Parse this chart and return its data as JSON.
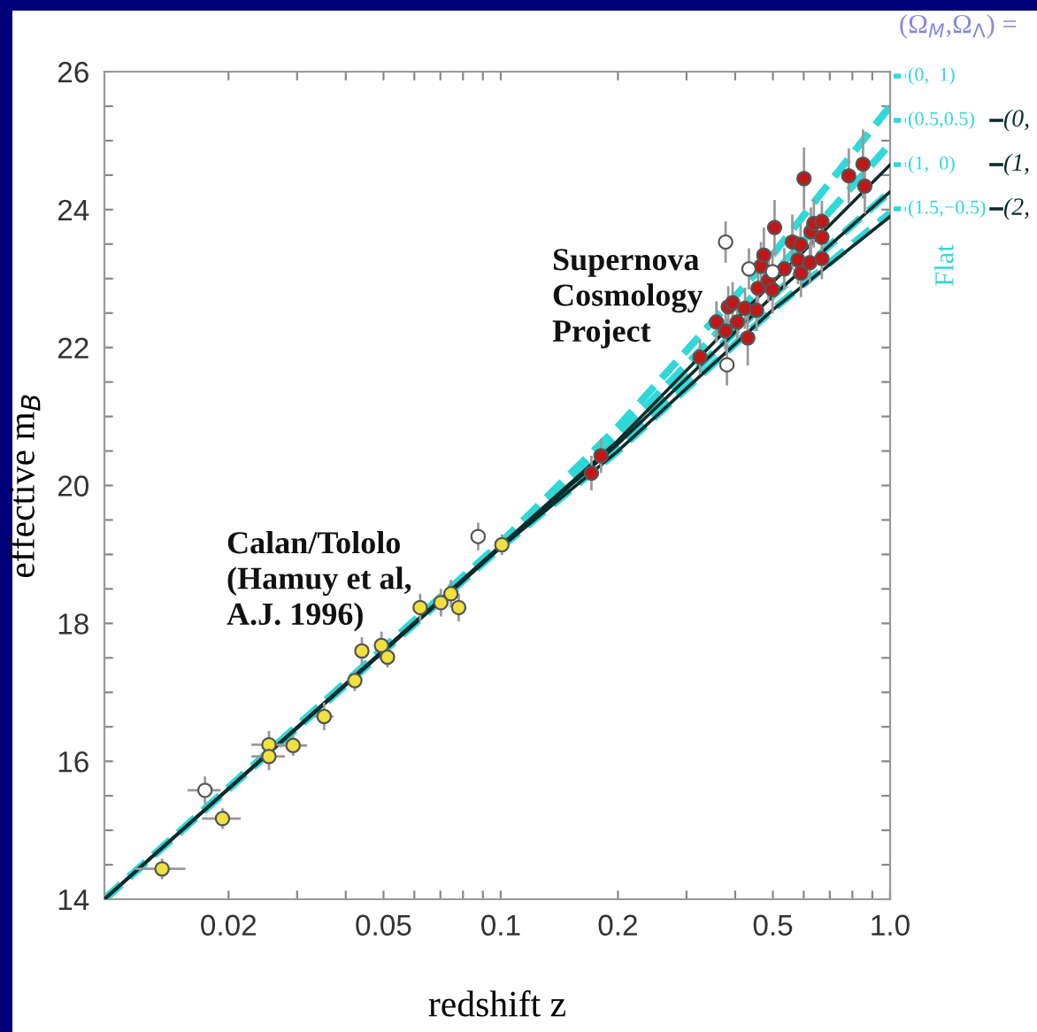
{
  "chart_data": {
    "type": "scatter",
    "xlabel": "redshift z",
    "ylabel": "effective m$_{B}$",
    "legend_title": "(Ω$_{M}$,Ω$_{Λ}$) =",
    "legend": "right",
    "grid": false,
    "log": "x",
    "xlim": [
      0.0096,
      1.0
    ],
    "ylim": [
      14,
      26
    ],
    "xticks": [
      0.02,
      {
        "value": 0.03,
        "label": null
      },
      {
        "value": 0.04,
        "label": null
      },
      0.05,
      {
        "value": 0.06,
        "label": null
      },
      {
        "value": 0.07,
        "label": null
      },
      {
        "value": 0.08,
        "label": null
      },
      {
        "value": 0.09,
        "label": null
      },
      0.1,
      0.2,
      {
        "value": 0.3,
        "label": null
      },
      {
        "value": 0.4,
        "label": null
      },
      0.5,
      {
        "value": 0.6,
        "label": null
      },
      {
        "value": 0.7,
        "label": null
      },
      {
        "value": 0.8,
        "label": null
      },
      {
        "value": 0.9,
        "label": null
      },
      {
        "value": 1.0,
        "label": "1.0"
      }
    ],
    "yticks": [
      14,
      {
        "value": 14.5,
        "label": null
      },
      {
        "value": 15,
        "label": null
      },
      {
        "value": 15.5,
        "label": null
      },
      16,
      {
        "value": 16.5,
        "label": null
      },
      {
        "value": 17,
        "label": null
      },
      {
        "value": 17.5,
        "label": null
      },
      18,
      {
        "value": 18.5,
        "label": null
      },
      {
        "value": 19,
        "label": null
      },
      {
        "value": 19.5,
        "label": null
      },
      20,
      {
        "value": 20.5,
        "label": null
      },
      {
        "value": 21,
        "label": null
      },
      {
        "value": 21.5,
        "label": null
      },
      22,
      {
        "value": 22.5,
        "label": null
      },
      {
        "value": 23,
        "label": null
      },
      {
        "value": 23.5,
        "label": null
      },
      24,
      {
        "value": 24.5,
        "label": null
      },
      {
        "value": 25,
        "label": null
      },
      {
        "value": 25.5,
        "label": null
      },
      26
    ],
    "annotations": [
      "Calan/Tololo\n(Hamuy et al,\nA.J. 1996)",
      "Supernova\nCosmology\nProject",
      "Flat"
    ],
    "series": [
      {
        "type": "line",
        "name": "(0,  1)",
        "color": "#30d8d8",
        "line_style": "dashed",
        "marker": "none",
        "x": [
          0.0096,
          0.1,
          0.2,
          0.5,
          1.0
        ],
        "values": [
          14.0,
          19.17,
          20.85,
          23.35,
          25.5
        ]
      },
      {
        "type": "line",
        "name": "(0.5,0.5)",
        "color": "#30d8d8",
        "line_style": "dashed",
        "marker": "none",
        "x": [
          0.0096,
          0.1,
          0.2,
          0.5,
          1.0
        ],
        "values": [
          14.0,
          19.15,
          20.72,
          23.05,
          24.95
        ]
      },
      {
        "type": "line",
        "name": "(1,  0)",
        "color": "#30d8d8",
        "line_style": "dashed",
        "marker": "none",
        "x": [
          0.0096,
          0.1,
          0.2,
          0.5,
          1.0
        ],
        "values": [
          14.0,
          19.12,
          20.6,
          22.75,
          24.26
        ]
      },
      {
        "type": "line",
        "name": "(1.5,−0.5)",
        "color": "#30d8d8",
        "line_style": "dashed",
        "marker": "none",
        "x": [
          0.0096,
          0.1,
          0.2,
          0.5,
          1.0
        ],
        "values": [
          14.0,
          19.1,
          20.5,
          22.55,
          23.95
        ]
      },
      {
        "type": "line",
        "name": "(0,",
        "color": "#0c2c2c",
        "line_style": "solid",
        "marker": "none",
        "x": [
          0.0096,
          0.1,
          0.2,
          0.5,
          1.0
        ],
        "values": [
          14.0,
          19.13,
          20.65,
          22.95,
          24.65
        ]
      },
      {
        "type": "line",
        "name": "(1,",
        "color": "#0c2c2c",
        "line_style": "solid",
        "marker": "none",
        "x": [
          0.0096,
          0.1,
          0.2,
          0.5,
          1.0
        ],
        "values": [
          14.0,
          19.12,
          20.6,
          22.75,
          24.26
        ]
      },
      {
        "type": "line",
        "name": "(2,",
        "color": "#0c2c2c",
        "line_style": "solid",
        "marker": "none",
        "x": [
          0.0096,
          0.1,
          0.2,
          0.5,
          1.0
        ],
        "values": [
          14.0,
          19.1,
          20.5,
          22.55,
          23.9
        ]
      },
      {
        "marker": "circle",
        "color": "#f0e040",
        "x": [
          0.0135,
          0.0193,
          0.0254,
          0.0254,
          0.0293,
          0.0352,
          0.0422,
          0.044,
          0.0494,
          0.0512,
          0.0621,
          0.0702,
          0.0745,
          0.078,
          0.1007
        ],
        "values": [
          14.44,
          15.17,
          16.24,
          16.07,
          16.23,
          16.65,
          17.17,
          17.6,
          17.68,
          17.51,
          18.23,
          18.3,
          18.43,
          18.23,
          19.14
        ],
        "errors": [
          0.15,
          0.15,
          0.2,
          0.2,
          0.15,
          0.2,
          0.15,
          0.2,
          0.2,
          0.15,
          0.2,
          0.2,
          0.2,
          0.2,
          0.15
        ],
        "xerrors": [
          0.002,
          0.0022,
          0.0025,
          0.0025,
          0.0025,
          0.002,
          0.0015,
          0.0015,
          0.0015,
          0.0015,
          0.002,
          0.002,
          0.002,
          0.002,
          0.002
        ]
      },
      {
        "marker": "circle",
        "color": "#ffffff",
        "x": [
          0.0174,
          0.0875
        ],
        "values": [
          15.58,
          19.26
        ],
        "errors": [
          0.2,
          0.2
        ],
        "xerrors": [
          0.0017,
          0.002
        ]
      },
      {
        "marker": "circle",
        "color": "#c01818",
        "x": [
          0.171,
          0.181,
          0.325,
          0.358,
          0.378,
          0.384,
          0.394,
          0.405,
          0.424,
          0.431,
          0.454,
          0.458,
          0.466,
          0.474,
          0.487,
          0.499,
          0.505,
          0.535,
          0.561,
          0.58,
          0.589,
          0.59,
          0.601,
          0.622,
          0.626,
          0.637,
          0.668,
          0.668,
          0.668,
          0.783,
          0.852,
          0.861
        ],
        "values": [
          20.18,
          20.43,
          21.86,
          22.37,
          22.24,
          22.59,
          22.65,
          22.37,
          22.57,
          22.14,
          22.54,
          22.86,
          23.18,
          23.34,
          22.97,
          22.84,
          23.74,
          23.14,
          23.53,
          23.27,
          23.49,
          23.08,
          24.45,
          23.23,
          23.68,
          23.8,
          23.83,
          23.6,
          23.29,
          24.49,
          24.66,
          24.34
        ],
        "errors": [
          0.25,
          0.25,
          0.25,
          0.3,
          0.3,
          0.3,
          0.3,
          0.25,
          0.3,
          0.4,
          0.3,
          0.35,
          0.35,
          0.4,
          0.3,
          0.35,
          0.4,
          0.3,
          0.4,
          0.35,
          0.3,
          0.35,
          0.45,
          0.3,
          0.35,
          0.35,
          0.3,
          0.3,
          0.3,
          0.4,
          0.5,
          0.4
        ]
      },
      {
        "marker": "circle",
        "color": "#ffffff",
        "x": [
          0.378,
          0.381,
          0.434,
          0.499
        ],
        "values": [
          23.53,
          21.75,
          23.14,
          23.1
        ],
        "errors": [
          0.3,
          0.3,
          0.3,
          0.3
        ]
      }
    ]
  }
}
